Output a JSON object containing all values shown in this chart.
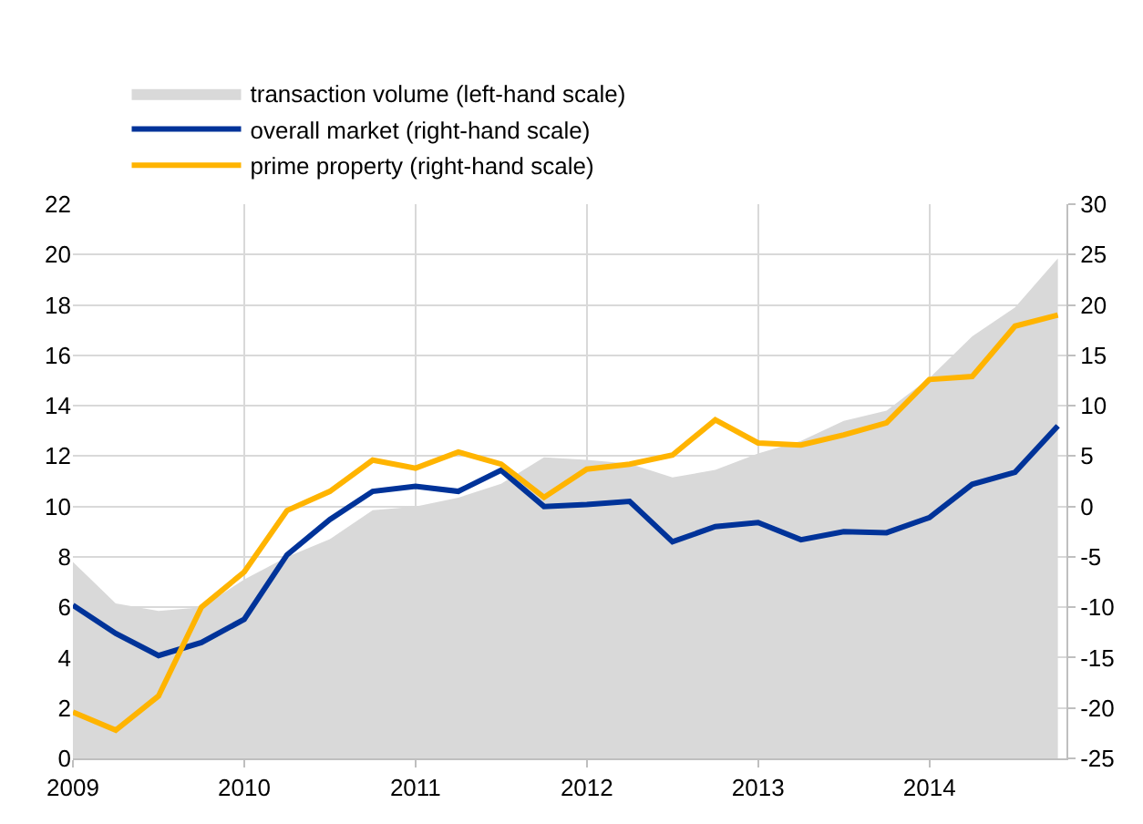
{
  "chart_data": {
    "type": "line",
    "x": [
      2009,
      2009.25,
      2009.5,
      2009.75,
      2010,
      2010.25,
      2010.5,
      2010.75,
      2011,
      2011.25,
      2011.5,
      2011.75,
      2012,
      2012.25,
      2012.5,
      2012.75,
      2013,
      2013.25,
      2013.5,
      2013.75,
      2014,
      2014.25,
      2014.5,
      2014.75
    ],
    "series": [
      {
        "name": "transaction volume (left-hand scale)",
        "type": "area",
        "color": "#d9d9d9",
        "values": [
          7.8,
          6.15,
          5.85,
          6.0,
          7.1,
          8.0,
          8.7,
          9.85,
          10.0,
          10.35,
          10.9,
          11.95,
          11.85,
          11.7,
          11.15,
          11.45,
          12.1,
          12.6,
          13.4,
          13.8,
          15.1,
          16.75,
          17.9,
          19.85
        ]
      },
      {
        "name": "overall market (right-hand scale)",
        "axis": "y2",
        "color": "#003399",
        "values": [
          -9.8,
          -12.6,
          -14.8,
          -13.5,
          -11.2,
          -4.8,
          -1.3,
          1.5,
          2.0,
          1.5,
          3.6,
          0.0,
          0.2,
          0.5,
          -3.5,
          -2.0,
          -1.6,
          -3.3,
          -2.5,
          -2.6,
          -1.1,
          2.2,
          3.4,
          8.0
        ]
      },
      {
        "name": "prime property (right-hand scale)",
        "axis": "y2",
        "color": "#ffb400",
        "values": [
          -20.4,
          -22.2,
          -18.8,
          -10.0,
          -6.5,
          -0.4,
          1.5,
          4.6,
          3.8,
          5.4,
          4.2,
          0.9,
          3.7,
          4.2,
          5.1,
          8.6,
          6.3,
          6.1,
          7.1,
          8.3,
          12.6,
          12.9,
          17.9,
          19.0
        ]
      }
    ],
    "xlim": [
      2009,
      2014.8
    ],
    "xticks": [
      2009,
      2010,
      2011,
      2012,
      2013,
      2014
    ],
    "ylim": [
      0,
      22
    ],
    "yticks": [
      0,
      2,
      4,
      6,
      8,
      10,
      12,
      14,
      16,
      18,
      20,
      22
    ],
    "y2lim": [
      -25,
      30
    ],
    "y2ticks": [
      -25,
      -20,
      -15,
      -10,
      -5,
      0,
      5,
      10,
      15,
      20,
      25,
      30
    ],
    "grid": true,
    "legend": "top left",
    "line_style": "solid"
  }
}
